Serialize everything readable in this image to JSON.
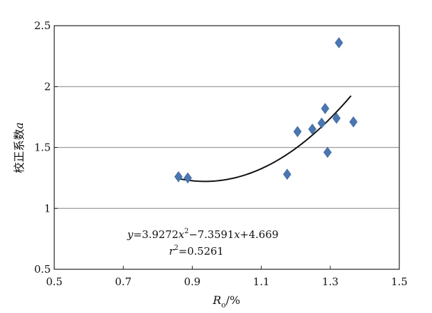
{
  "chart_data": {
    "type": "scatter",
    "title": "",
    "xlabel_main": "R",
    "xlabel_sub": "o",
    "xlabel_unit": "/%",
    "ylabel_text": "校正系数",
    "ylabel_var": "a",
    "xlim": [
      0.5,
      1.5
    ],
    "ylim": [
      0.5,
      2.5
    ],
    "x_ticks": [
      0.5,
      0.7,
      0.9,
      1.1,
      1.3,
      1.5
    ],
    "x_tick_labels": [
      "0.5",
      "0.7",
      "0.9",
      "1.1",
      "1.3",
      "1.5"
    ],
    "y_ticks": [
      0.5,
      1,
      1.5,
      2,
      2.5
    ],
    "y_tick_labels": [
      "0.5",
      "1",
      "1.5",
      "2",
      "2.5"
    ],
    "gridlines_y": [
      1,
      1.5,
      2
    ],
    "grid": "horizontal",
    "marker_color": "#4a76b1",
    "curve_color": "#111111",
    "points": [
      {
        "x": 0.86,
        "y": 1.26
      },
      {
        "x": 0.887,
        "y": 1.25
      },
      {
        "x": 1.175,
        "y": 1.28
      },
      {
        "x": 1.205,
        "y": 1.63
      },
      {
        "x": 1.248,
        "y": 1.65
      },
      {
        "x": 1.275,
        "y": 1.7
      },
      {
        "x": 1.285,
        "y": 1.82
      },
      {
        "x": 1.292,
        "y": 1.46
      },
      {
        "x": 1.318,
        "y": 1.74
      },
      {
        "x": 1.325,
        "y": 2.36
      },
      {
        "x": 1.367,
        "y": 1.71
      }
    ],
    "fit": {
      "a": 3.9272,
      "b": -7.3591,
      "c": 4.669,
      "x_range": [
        0.855,
        1.36
      ]
    },
    "equation": {
      "y": "y",
      "eq1": "=3.9272",
      "x1": "x",
      "sup2": "2",
      "eq2": "−7.3591",
      "x2": "x",
      "eq3": "+4.669"
    },
    "r2": {
      "r": "r",
      "sup2": "2",
      "val": "=0.5261"
    }
  }
}
